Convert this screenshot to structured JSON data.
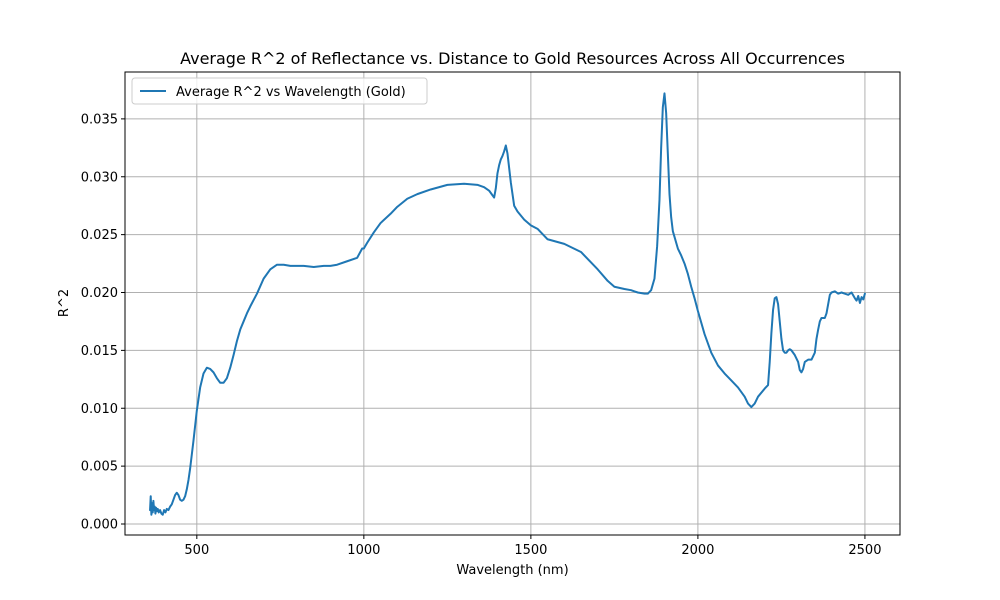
{
  "chart_data": {
    "type": "line",
    "title": "Average R^2 of Reflectance vs. Distance to Gold Resources Across All Occurrences",
    "xlabel": "Wavelength (nm)",
    "ylabel": "R^2",
    "xlim": [
      285,
      2605
    ],
    "ylim": [
      -0.00095,
      0.03905
    ],
    "xticks": [
      500,
      1000,
      1500,
      2000,
      2500
    ],
    "xtick_labels": [
      "500",
      "1000",
      "1500",
      "2000",
      "2500"
    ],
    "yticks": [
      0.0,
      0.005,
      0.01,
      0.015,
      0.02,
      0.025,
      0.03,
      0.035
    ],
    "ytick_labels": [
      "0.000",
      "0.005",
      "0.010",
      "0.015",
      "0.020",
      "0.025",
      "0.030",
      "0.035"
    ],
    "grid": true,
    "legend_position": "top-left",
    "series": [
      {
        "name": "Average R^2 vs Wavelength (Gold)",
        "color": "#1f77b4",
        "x": [
          360,
          362,
          364,
          366,
          368,
          370,
          372,
          374,
          376,
          378,
          380,
          383,
          386,
          390,
          394,
          398,
          402,
          406,
          410,
          415,
          420,
          425,
          430,
          435,
          440,
          445,
          450,
          455,
          460,
          465,
          470,
          475,
          480,
          490,
          500,
          510,
          520,
          530,
          540,
          550,
          560,
          570,
          580,
          590,
          600,
          610,
          620,
          630,
          640,
          650,
          660,
          680,
          700,
          720,
          740,
          760,
          780,
          800,
          820,
          850,
          880,
          900,
          920,
          950,
          980,
          995,
          1000,
          1010,
          1030,
          1050,
          1080,
          1100,
          1130,
          1160,
          1200,
          1250,
          1300,
          1340,
          1360,
          1375,
          1385,
          1390,
          1395,
          1400,
          1405,
          1410,
          1415,
          1420,
          1425,
          1430,
          1440,
          1450,
          1460,
          1480,
          1500,
          1520,
          1550,
          1600,
          1650,
          1700,
          1730,
          1750,
          1780,
          1800,
          1820,
          1840,
          1850,
          1860,
          1870,
          1878,
          1885,
          1890,
          1895,
          1900,
          1905,
          1910,
          1915,
          1920,
          1925,
          1930,
          1940,
          1950,
          1960,
          1970,
          1980,
          1990,
          2000,
          2020,
          2040,
          2060,
          2080,
          2100,
          2120,
          2140,
          2150,
          2160,
          2170,
          2180,
          2200,
          2210,
          2215,
          2220,
          2225,
          2230,
          2235,
          2240,
          2245,
          2250,
          2255,
          2260,
          2265,
          2270,
          2275,
          2280,
          2290,
          2300,
          2305,
          2310,
          2315,
          2320,
          2330,
          2340,
          2350,
          2355,
          2360,
          2365,
          2370,
          2380,
          2385,
          2390,
          2395,
          2400,
          2410,
          2420,
          2430,
          2440,
          2450,
          2460,
          2470,
          2475,
          2480,
          2485,
          2490,
          2495,
          2500
        ],
        "y": [
          0.0012,
          0.0024,
          0.0008,
          0.0018,
          0.001,
          0.002,
          0.0012,
          0.0015,
          0.0009,
          0.0014,
          0.0011,
          0.0013,
          0.001,
          0.0012,
          0.0009,
          0.0008,
          0.0012,
          0.001,
          0.0013,
          0.0012,
          0.0015,
          0.0017,
          0.0021,
          0.0025,
          0.0027,
          0.0025,
          0.0021,
          0.002,
          0.0021,
          0.0024,
          0.003,
          0.0038,
          0.0048,
          0.0072,
          0.0098,
          0.0118,
          0.013,
          0.0135,
          0.0134,
          0.0131,
          0.0126,
          0.0122,
          0.0122,
          0.0126,
          0.0135,
          0.0146,
          0.0158,
          0.0168,
          0.0175,
          0.0182,
          0.0188,
          0.0199,
          0.0212,
          0.022,
          0.0224,
          0.0224,
          0.0223,
          0.0223,
          0.0223,
          0.0222,
          0.0223,
          0.0223,
          0.0224,
          0.0227,
          0.023,
          0.0238,
          0.0238,
          0.0243,
          0.0252,
          0.026,
          0.0268,
          0.0274,
          0.0281,
          0.0285,
          0.0289,
          0.0293,
          0.0294,
          0.0293,
          0.0291,
          0.0288,
          0.0284,
          0.0282,
          0.029,
          0.0303,
          0.031,
          0.0315,
          0.0318,
          0.0322,
          0.0327,
          0.032,
          0.0295,
          0.0275,
          0.027,
          0.0263,
          0.0258,
          0.0255,
          0.0246,
          0.0242,
          0.0235,
          0.022,
          0.021,
          0.0205,
          0.0203,
          0.0202,
          0.02,
          0.0199,
          0.0199,
          0.0202,
          0.0212,
          0.024,
          0.028,
          0.0325,
          0.036,
          0.0372,
          0.0355,
          0.032,
          0.0285,
          0.0265,
          0.0253,
          0.0248,
          0.0238,
          0.0232,
          0.0225,
          0.0216,
          0.0205,
          0.0195,
          0.0184,
          0.0164,
          0.0148,
          0.0137,
          0.013,
          0.0124,
          0.0118,
          0.011,
          0.0104,
          0.0101,
          0.0104,
          0.011,
          0.0117,
          0.012,
          0.014,
          0.0165,
          0.0185,
          0.0195,
          0.0196,
          0.019,
          0.0175,
          0.016,
          0.015,
          0.0148,
          0.0148,
          0.015,
          0.0151,
          0.015,
          0.0146,
          0.014,
          0.0133,
          0.0131,
          0.0134,
          0.014,
          0.0142,
          0.0142,
          0.0148,
          0.016,
          0.0168,
          0.0175,
          0.0178,
          0.0178,
          0.0182,
          0.019,
          0.0198,
          0.02,
          0.0201,
          0.0199,
          0.02,
          0.0199,
          0.0198,
          0.02,
          0.0195,
          0.0193,
          0.0197,
          0.0191,
          0.0196,
          0.0194,
          0.0199
        ]
      }
    ]
  }
}
